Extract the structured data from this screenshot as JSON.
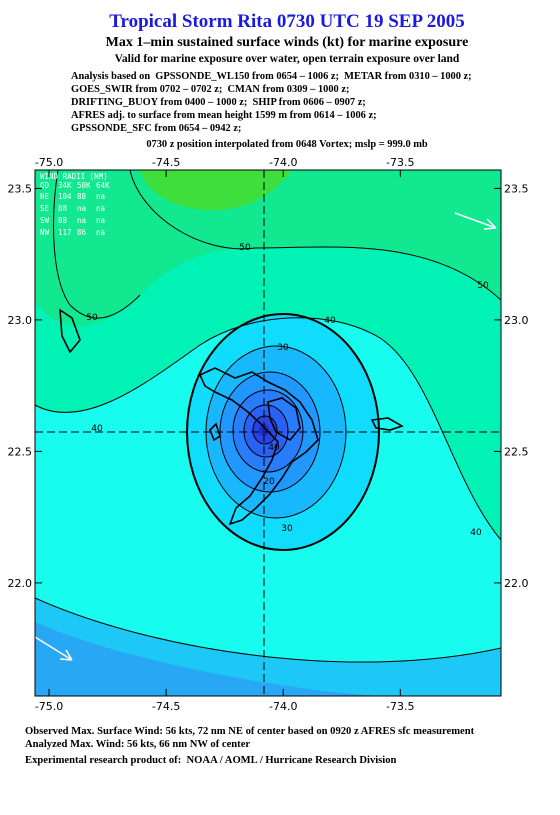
{
  "header": {
    "title": "Tropical Storm Rita 0730 UTC 19 SEP 2005",
    "subtitle": "Max 1–min sustained surface winds (kt) for marine exposure",
    "validity": "Valid for marine exposure over water, open terrain exposure over land",
    "analysis_lines": [
      "Analysis based on  GPSSONDE_WL150 from 0654 – 1006 z;  METAR from 0310 – 1000 z;",
      "GOES_SWIR from 0702 – 0702 z;  CMAN from 0309 – 1000 z;",
      "DRIFTING_BUOY from 0400 – 1000 z;  SHIP from 0606 – 0907 z;",
      "AFRES adj. to surface from mean height 1599 m from 0614 – 1006 z;",
      "GPSSONDE_SFC from 0654 – 0942 z;"
    ],
    "position_note": "0730 z position interpolated from 0648 Vortex; mslp = 999.0 mb"
  },
  "map": {
    "xlim": [
      -75.06,
      -73.07
    ],
    "ylim": [
      21.57,
      23.57
    ],
    "xticks": [
      {
        "value": -75.0,
        "label": "-75.0"
      },
      {
        "value": -74.5,
        "label": "-74.5"
      },
      {
        "value": -74.0,
        "label": "-74.0"
      },
      {
        "value": -73.5,
        "label": "-73.5"
      }
    ],
    "yticks": [
      23.5,
      {
        "value": 23.0,
        "label": "23.0"
      },
      22.5,
      {
        "value": 22.0,
        "label": "22.0"
      }
    ],
    "wind_radii": {
      "title": "WIND RADII (NM)",
      "columns": [
        "QD",
        "34K",
        "50K",
        "64K"
      ],
      "rows": [
        [
          "NE",
          "104",
          "88",
          "na"
        ],
        [
          "SE",
          "88",
          "na",
          "na"
        ],
        [
          "SW",
          "88",
          "na",
          "na"
        ],
        [
          "NW",
          "117",
          "86",
          "na"
        ]
      ]
    },
    "contour_labels": [
      50,
      50,
      50,
      40,
      40,
      40,
      30,
      30,
      40,
      20
    ]
  },
  "footer": {
    "lines": [
      "Observed Max. Surface Wind: 56 kts, 72 nm NE of center based on 0920 z AFRES sfc measurement",
      "Analyzed Max. Wind: 56 kts, 66 nm NW of center",
      "Experimental research product of:  NOAA / AOML / Hurricane Research Division"
    ]
  }
}
